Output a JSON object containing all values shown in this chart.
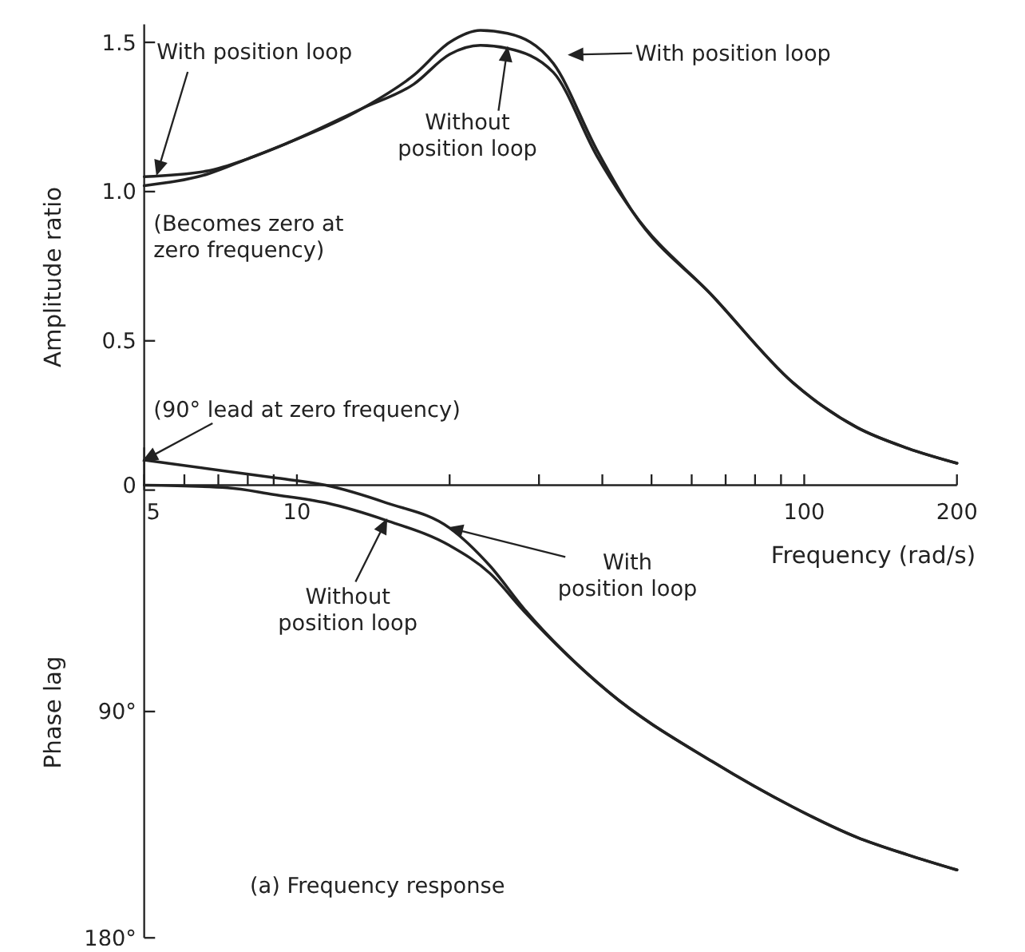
{
  "chart_data": [
    {
      "type": "line",
      "ylabel": "Amplitude ratio",
      "log": "x",
      "xlim": [
        5,
        200
      ],
      "ylim": [
        0,
        1.56
      ],
      "yticks": [
        {
          "value": 0,
          "label": null
        },
        0.5,
        {
          "value": 1,
          "label": "1.0"
        },
        1.5
      ],
      "tick_labels": "y",
      "x": [
        5,
        6.7,
        8,
        9.5,
        13.5,
        17,
        20,
        23,
        26,
        32,
        39,
        46,
        66,
        95,
        127,
        160,
        200
      ],
      "series": [
        {
          "color": "#222222",
          "values": [
            1.05,
            1.07,
            1.11,
            1.16,
            1.28,
            1.39,
            1.5,
            1.54,
            1.53,
            1.43,
            1.14,
            0.93,
            0.65,
            0.36,
            0.21,
            0.14,
            0.09
          ]
        },
        {
          "color": "#222222",
          "values": [
            1.02,
            1.06,
            1.11,
            1.16,
            1.28,
            1.36,
            1.46,
            1.49,
            1.48,
            1.4,
            1.12,
            0.93,
            0.65,
            0.36,
            0.21,
            0.14,
            0.09
          ]
        }
      ],
      "annotations": [
        {
          "text": "With position loop",
          "x": 5.3,
          "y": 1.06
        },
        "With position loop",
        {
          "text": "Without\nposition loop",
          "x": 26,
          "y": 1.48
        },
        "(Becomes zero at\nzero frequency)"
      ]
    },
    {
      "type": "line",
      "ylabel": "Phase lag",
      "xlabel": "Frequency (rad/s)",
      "log": "x",
      "xlim": [
        5,
        200
      ],
      "ylim": [
        180,
        -15
      ],
      "xticks": [
        5,
        {
          "value": 6,
          "label": null
        },
        {
          "value": 7,
          "label": null
        },
        {
          "value": 8,
          "label": null
        },
        {
          "value": 9,
          "label": null
        },
        10,
        {
          "value": 20,
          "label": null
        },
        {
          "value": 30,
          "label": null
        },
        {
          "value": 40,
          "label": null
        },
        {
          "value": 50,
          "label": null
        },
        {
          "value": 60,
          "label": null
        },
        {
          "value": 70,
          "label": null
        },
        {
          "value": 80,
          "label": null
        },
        {
          "value": 90,
          "label": null
        },
        100,
        200
      ],
      "yticks": [
        0,
        {
          "value": 90,
          "label": "90°"
        },
        {
          "value": 180,
          "label": "180°"
        }
      ],
      "x": [
        5,
        7.3,
        9,
        11.4,
        15,
        20,
        24,
        28,
        41,
        66,
        95,
        127,
        160,
        200
      ],
      "series": [
        {
          "color": "#222222",
          "values": [
            -10,
            -5.5,
            -3,
            0,
            7,
            17,
            32,
            49,
            82,
            110,
            128,
            140,
            147,
            153
          ]
        },
        {
          "color": "#222222",
          "values": [
            0,
            1,
            3.7,
            7,
            14,
            24,
            35,
            50,
            82,
            110,
            128,
            140,
            147,
            153
          ]
        }
      ],
      "annotations": [
        {
          "text": "(90° lead at zero frequency)",
          "x": 5,
          "y": -10
        },
        {
          "text": "Without\nposition loop",
          "x": 15,
          "y": 14
        },
        {
          "text": "With\nposition loop",
          "x": 20,
          "y": 17
        },
        "(a) Frequency response"
      ]
    }
  ]
}
